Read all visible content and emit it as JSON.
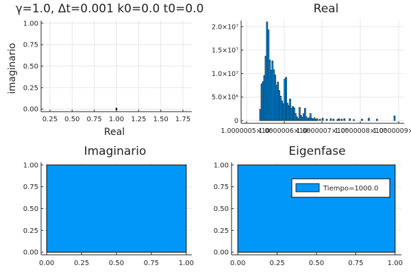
{
  "chart_data": [
    {
      "type": "scatter",
      "title": "γ=1.0,   Δt=0.001 k0=0.0 t0=0.0",
      "xlabel": "Real",
      "ylabel": "imaginario",
      "xlim": [
        0.15,
        1.85
      ],
      "ylim": [
        -0.03,
        1.03
      ],
      "xticks": [
        "0.25",
        "0.50",
        "0.75",
        "1.00",
        "1.25",
        "1.50",
        "1.75"
      ],
      "yticks": [
        "0.00",
        "0.25",
        "0.50",
        "0.75",
        "1.00"
      ],
      "grid": true,
      "points": [
        {
          "x": 1.0,
          "y": 0.005
        },
        {
          "x": 1.0,
          "y": 0.0
        },
        {
          "x": 1.0,
          "y": -0.005
        }
      ]
    },
    {
      "type": "bar",
      "title": "Real",
      "xlabel": "",
      "ylabel": "",
      "ylim": [
        0,
        21000000
      ],
      "yticks": [
        "0",
        "5.0×10⁶",
        "1.0×10⁷",
        "1.5×10⁷",
        "2.0×10⁷"
      ],
      "xticks": [
        "1.0000005×10⁰",
        "1.0000006×10⁰",
        "1.0000007×10⁰",
        "1.0000008×10⁰",
        "1.0000009×10⁰"
      ],
      "grid": true,
      "values": [
        2400000,
        7800000,
        8300000,
        9600000,
        13700000,
        21000000,
        19300000,
        12900000,
        10700000,
        12700000,
        10800000,
        9700000,
        7500000,
        8200000,
        6400000,
        5200000,
        4200000,
        3600000,
        8800000,
        9200000,
        3700000,
        3200000,
        4600000,
        2600000,
        3000000,
        2700000,
        1500000,
        800000,
        400000,
        2800000,
        1100000,
        700000,
        1500000,
        2600000,
        800000,
        400000,
        600000,
        1500000,
        500000,
        300000,
        600000,
        200000,
        400000,
        0,
        300000,
        0,
        500000,
        0,
        0,
        300000,
        0,
        0,
        400000,
        0,
        300000,
        0,
        0,
        200000,
        400000,
        0,
        300000,
        0,
        400000,
        0,
        0,
        0,
        400000,
        0,
        0,
        200000,
        0,
        0,
        0,
        0,
        0,
        300000,
        0,
        0,
        0,
        0,
        500000,
        0,
        0,
        0,
        0,
        0,
        300000,
        0,
        0,
        0,
        0,
        0,
        0,
        0,
        0,
        0,
        0,
        0,
        0,
        1000000
      ]
    },
    {
      "type": "bar",
      "title": "Imaginario",
      "xlabel": "",
      "ylabel": "",
      "xlim": [
        -0.04,
        1.04
      ],
      "ylim": [
        -0.03,
        1.03
      ],
      "xticks": [
        "0.00",
        "0.25",
        "0.50",
        "0.75",
        "1.00"
      ],
      "yticks": [
        "0.00",
        "0.25",
        "0.50",
        "0.75",
        "1.00"
      ],
      "grid": true,
      "bars": [
        {
          "x0": 0,
          "x1": 1,
          "value": 1
        }
      ]
    },
    {
      "type": "bar",
      "title": "Eigenfase",
      "xlabel": "",
      "ylabel": "",
      "xlim": [
        -0.04,
        1.04
      ],
      "ylim": [
        -0.03,
        1.03
      ],
      "xticks": [
        "0.00",
        "0.25",
        "0.50",
        "0.75",
        "1.00"
      ],
      "yticks": [
        "0.00",
        "0.25",
        "0.50",
        "0.75",
        "1.00"
      ],
      "grid": true,
      "legend": {
        "placement": "top-right",
        "entries": [
          "Tiempo=1000.0"
        ]
      },
      "bars": [
        {
          "x0": 0,
          "x1": 1,
          "value": 1
        }
      ]
    }
  ],
  "colors": {
    "series": "#0097f8",
    "edge": "#000000",
    "axis": "#222222",
    "grid": "#e6e6e6"
  }
}
